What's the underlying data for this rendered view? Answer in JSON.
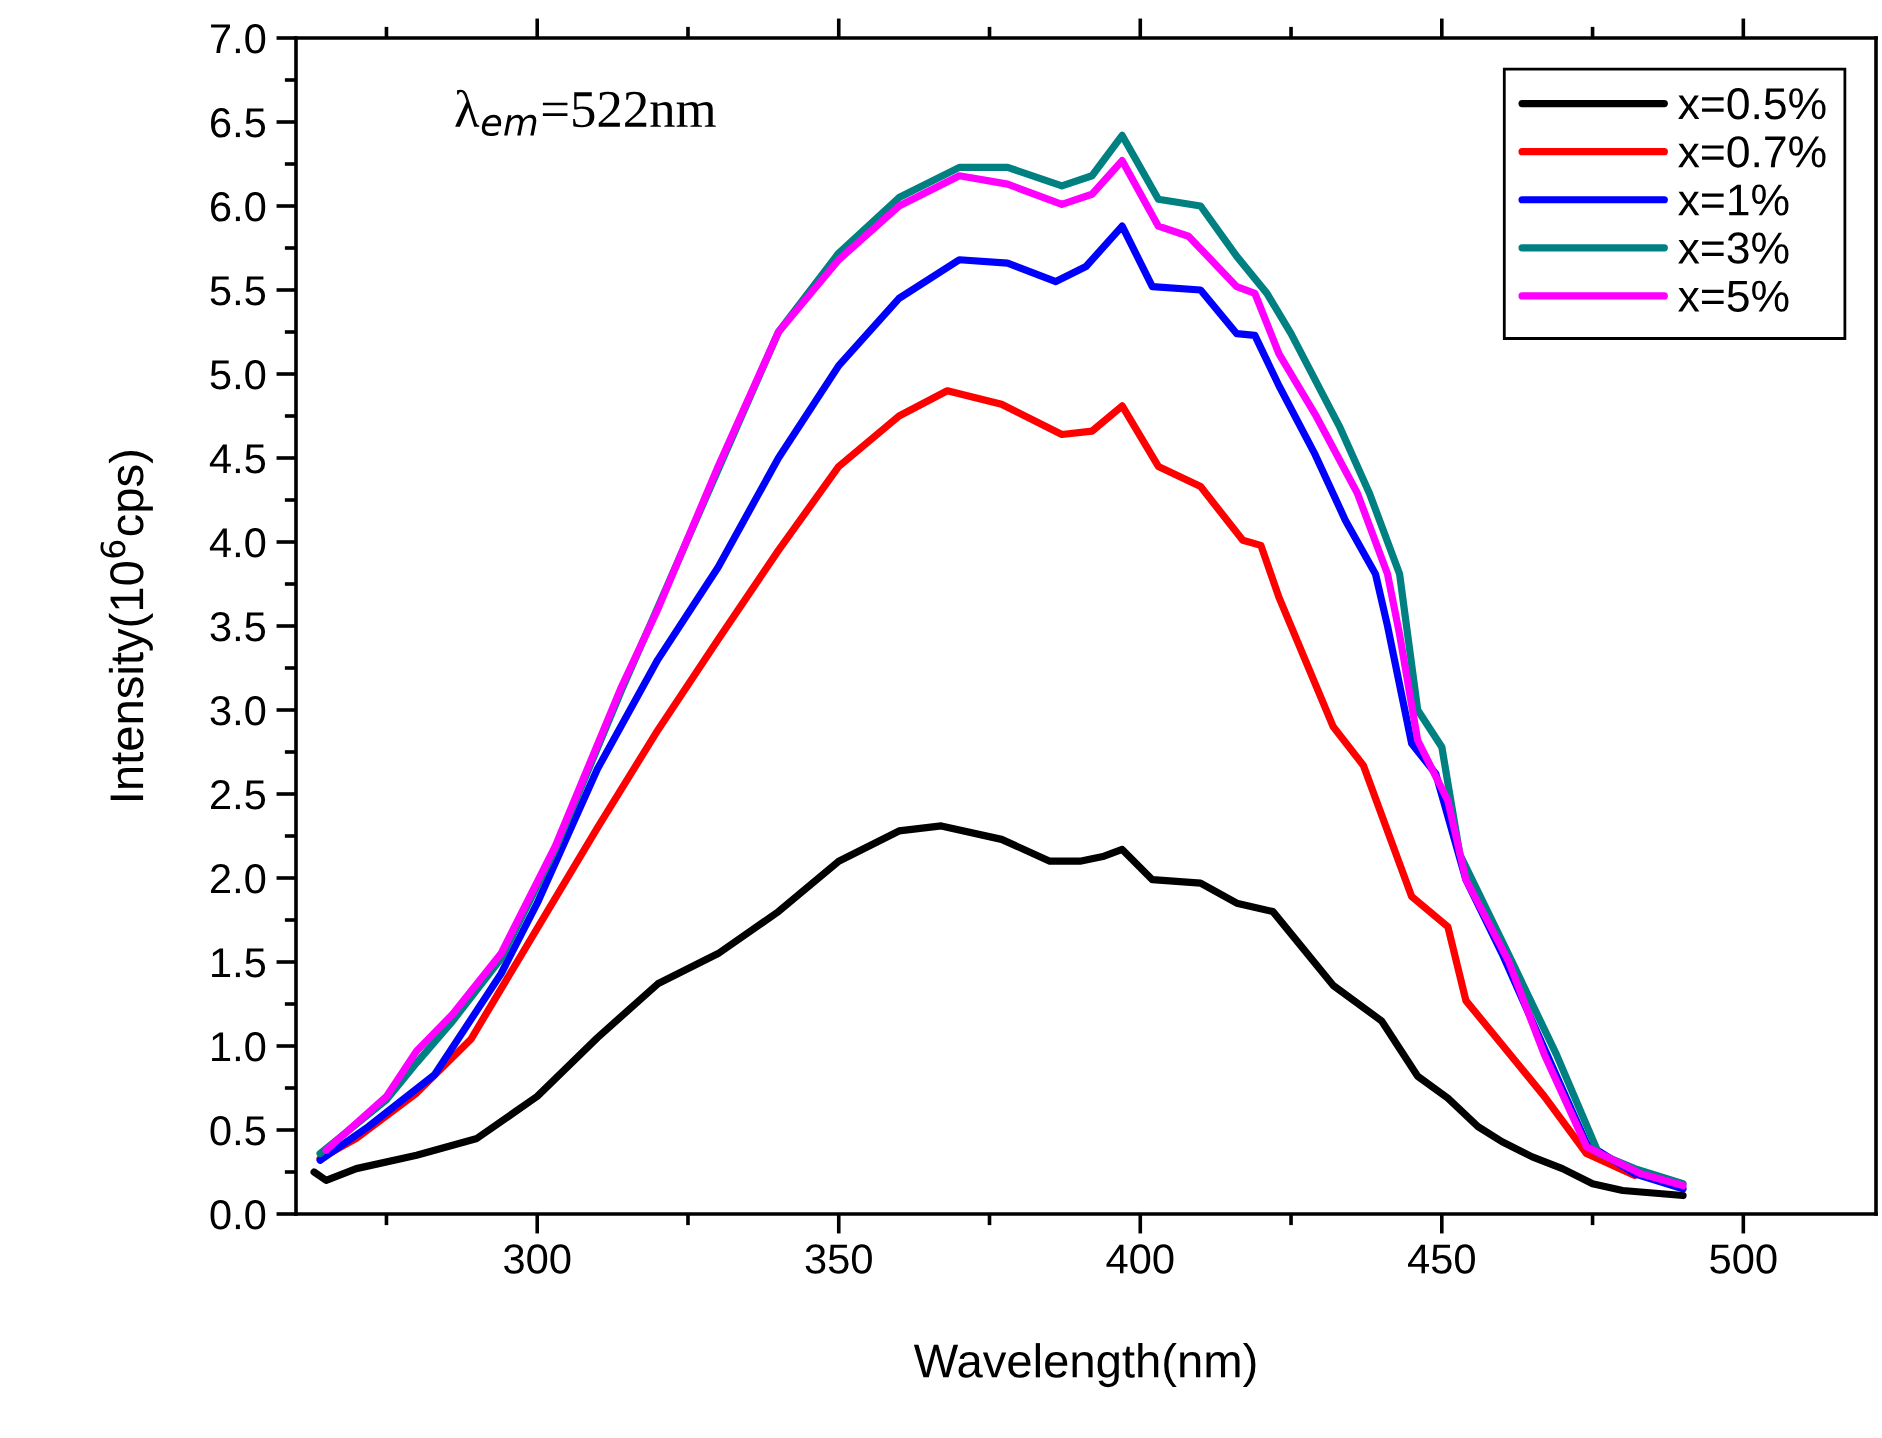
{
  "chart_data": {
    "type": "line",
    "xlabel": "Wavelength(nm)",
    "ylabel": "Intensity(10$^{6}$cps)",
    "annotations": [
      "λ$_{em}$=522nm"
    ],
    "xlim": [
      260,
      522
    ],
    "ylim": [
      0,
      7
    ],
    "xticks": [
      {
        "value": 275,
        "label": null
      },
      300,
      {
        "value": 325,
        "label": null
      },
      350,
      {
        "value": 375,
        "label": null
      },
      400,
      {
        "value": 425,
        "label": null
      },
      450,
      {
        "value": 475,
        "label": null
      },
      500
    ],
    "yticks": [
      "0.0",
      {
        "value": 0.25,
        "label": null
      },
      {
        "value": 0.5,
        "label": "0.5"
      },
      {
        "value": 0.75,
        "label": null
      },
      {
        "value": 1,
        "label": "1.0"
      },
      {
        "value": 1.25,
        "label": null
      },
      {
        "value": 1.5,
        "label": "1.5"
      },
      {
        "value": 1.75,
        "label": null
      },
      {
        "value": 2,
        "label": "2.0"
      },
      {
        "value": 2.25,
        "label": null
      },
      {
        "value": 2.5,
        "label": "2.5"
      },
      {
        "value": 2.75,
        "label": null
      },
      {
        "value": 3,
        "label": "3.0"
      },
      {
        "value": 3.25,
        "label": null
      },
      {
        "value": 3.5,
        "label": "3.5"
      },
      {
        "value": 3.75,
        "label": null
      },
      {
        "value": 4,
        "label": "4.0"
      },
      {
        "value": 4.25,
        "label": null
      },
      {
        "value": 4.5,
        "label": "4.5"
      },
      {
        "value": 4.75,
        "label": null
      },
      {
        "value": 5,
        "label": "5.0"
      },
      {
        "value": 5.25,
        "label": null
      },
      {
        "value": 5.5,
        "label": "5.5"
      },
      {
        "value": 5.75,
        "label": null
      },
      {
        "value": 6,
        "label": "6.0"
      },
      {
        "value": 6.25,
        "label": null
      },
      {
        "value": 6.5,
        "label": "6.5"
      },
      {
        "value": 6.75,
        "label": null
      },
      {
        "value": 7,
        "label": "7.0"
      }
    ],
    "grid": false,
    "legend": "top right",
    "marker": "none",
    "line_style": "solid",
    "series": [
      {
        "name": "x=0.5%",
        "color": "#000000",
        "x": [
          263,
          265,
          270,
          280,
          290,
          300,
          310,
          320,
          330,
          340,
          350,
          360,
          367,
          377,
          385,
          390,
          394,
          397,
          402,
          410,
          416,
          422,
          432,
          440,
          446,
          451,
          456,
          460,
          465,
          470,
          475,
          480,
          490
        ],
        "values": [
          0.25,
          0.2,
          0.27,
          0.35,
          0.45,
          0.7,
          1.05,
          1.37,
          1.55,
          1.8,
          2.1,
          2.28,
          2.31,
          2.23,
          2.1,
          2.1,
          2.13,
          2.17,
          1.99,
          1.97,
          1.85,
          1.8,
          1.36,
          1.15,
          0.82,
          0.69,
          0.52,
          0.43,
          0.34,
          0.27,
          0.18,
          0.14,
          0.11
        ]
      },
      {
        "name": "x=0.7%",
        "color": "#ff0000",
        "x": [
          264,
          270,
          280,
          289,
          300,
          310,
          320,
          330,
          340,
          350,
          360,
          368,
          377,
          387,
          392,
          397,
          403,
          410,
          417,
          420,
          423,
          432,
          437,
          445,
          451,
          454,
          462,
          467,
          474,
          482
        ],
        "values": [
          0.33,
          0.45,
          0.72,
          1.04,
          1.7,
          2.3,
          2.88,
          3.42,
          3.95,
          4.45,
          4.75,
          4.9,
          4.82,
          4.64,
          4.66,
          4.81,
          4.45,
          4.33,
          4.01,
          3.98,
          3.67,
          2.9,
          2.67,
          1.89,
          1.71,
          1.27,
          0.92,
          0.7,
          0.36,
          0.23
        ]
      },
      {
        "name": "x=1%",
        "color": "#0000ff",
        "x": [
          264,
          272,
          283,
          294,
          300,
          310,
          320,
          330,
          340,
          350,
          360,
          370,
          378,
          386,
          391,
          397,
          402,
          410,
          416,
          419,
          423,
          429,
          434,
          439,
          441,
          445,
          449,
          454,
          460,
          474,
          482,
          490
        ],
        "values": [
          0.32,
          0.52,
          0.83,
          1.43,
          1.85,
          2.65,
          3.3,
          3.85,
          4.5,
          5.05,
          5.45,
          5.68,
          5.66,
          5.55,
          5.64,
          5.88,
          5.52,
          5.5,
          5.24,
          5.23,
          4.93,
          4.52,
          4.13,
          3.81,
          3.5,
          2.8,
          2.62,
          1.99,
          1.55,
          0.42,
          0.24,
          0.15
        ]
      },
      {
        "name": "x=3%",
        "color": "#008080",
        "x": [
          264,
          275,
          280,
          286,
          294,
          303,
          314,
          340,
          350,
          360,
          370,
          378,
          387,
          392,
          397,
          403,
          410,
          416,
          421,
          425,
          433,
          438,
          443,
          446,
          450,
          453,
          461,
          469,
          476,
          482,
          490
        ],
        "values": [
          0.36,
          0.68,
          0.9,
          1.15,
          1.52,
          2.17,
          3.12,
          5.25,
          5.72,
          6.05,
          6.23,
          6.23,
          6.12,
          6.18,
          6.42,
          6.04,
          6.0,
          5.7,
          5.48,
          5.24,
          4.69,
          4.29,
          3.81,
          3.0,
          2.78,
          2.14,
          1.55,
          0.95,
          0.36,
          0.27,
          0.18
        ]
      },
      {
        "name": "x=5%",
        "color": "#ff00ff",
        "x": [
          265,
          275,
          280,
          286,
          294,
          303,
          314,
          320,
          330,
          340,
          350,
          360,
          370,
          378,
          387,
          392,
          397,
          403,
          408,
          416,
          419,
          423,
          429,
          436,
          441,
          443,
          446,
          451,
          454,
          461,
          467,
          474,
          483,
          490
        ],
        "values": [
          0.38,
          0.7,
          0.97,
          1.19,
          1.55,
          2.19,
          3.14,
          3.6,
          4.45,
          5.25,
          5.68,
          6.0,
          6.18,
          6.13,
          6.01,
          6.07,
          6.27,
          5.88,
          5.82,
          5.52,
          5.48,
          5.12,
          4.76,
          4.29,
          3.81,
          3.45,
          2.82,
          2.46,
          1.99,
          1.51,
          0.95,
          0.4,
          0.24,
          0.17
        ]
      }
    ]
  }
}
